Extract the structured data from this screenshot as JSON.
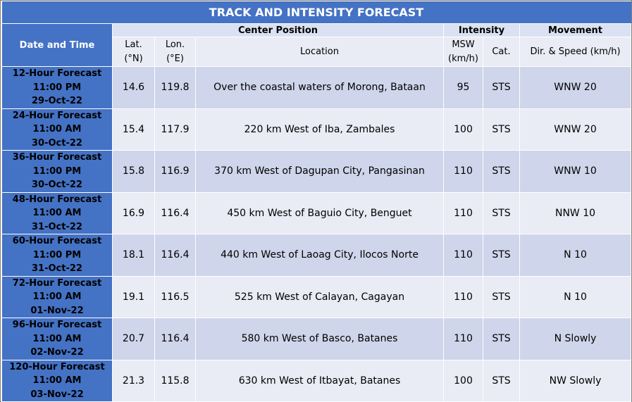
{
  "title": "TRACK AND INTENSITY FORECAST",
  "headers": {
    "date_time": "Date and Time",
    "center_position": "Center Position",
    "intensity": "Intensity",
    "movement": "Movement",
    "lat": [
      "Lat.",
      "(°N)"
    ],
    "lon": [
      "Lon.",
      "(°E)"
    ],
    "location": "Location",
    "msw": [
      "MSW",
      "(km/h)"
    ],
    "cat": "Cat.",
    "dir_speed": "Dir. & Speed (km/h)"
  },
  "rows": [
    {
      "forecast": "12-Hour Forecast",
      "time": "11:00 PM",
      "date": "29-Oct-22",
      "lat": "14.6",
      "lon": "119.8",
      "location": "Over the coastal waters of Morong, Bataan",
      "msw": "95",
      "cat": "STS",
      "movement": "WNW 20"
    },
    {
      "forecast": "24-Hour Forecast",
      "time": "11:00 AM",
      "date": "30-Oct-22",
      "lat": "15.4",
      "lon": "117.9",
      "location": "220 km West of Iba, Zambales",
      "msw": "100",
      "cat": "STS",
      "movement": "WNW 20"
    },
    {
      "forecast": "36-Hour Forecast",
      "time": "11:00 PM",
      "date": "30-Oct-22",
      "lat": "15.8",
      "lon": "116.9",
      "location": "370 km West of Dagupan City, Pangasinan",
      "msw": "110",
      "cat": "STS",
      "movement": "WNW 10"
    },
    {
      "forecast": "48-Hour Forecast",
      "time": "11:00 AM",
      "date": "31-Oct-22",
      "lat": "16.9",
      "lon": "116.4",
      "location": "450 km West of Baguio City, Benguet",
      "msw": "110",
      "cat": "STS",
      "movement": "NNW 10"
    },
    {
      "forecast": "60-Hour Forecast",
      "time": "11:00 PM",
      "date": "31-Oct-22",
      "lat": "18.1",
      "lon": "116.4",
      "location": "440 km West of Laoag City, Ilocos Norte",
      "msw": "110",
      "cat": "STS",
      "movement": "N 10"
    },
    {
      "forecast": "72-Hour Forecast",
      "time": "11:00 AM",
      "date": "01-Nov-22",
      "lat": "19.1",
      "lon": "116.5",
      "location": "525 km West of Calayan, Cagayan",
      "msw": "110",
      "cat": "STS",
      "movement": "N 10"
    },
    {
      "forecast": "96-Hour Forecast",
      "time": "11:00 AM",
      "date": "02-Nov-22",
      "lat": "20.7",
      "lon": "116.4",
      "location": "580 km West of Basco, Batanes",
      "msw": "110",
      "cat": "STS",
      "movement": "N Slowly"
    },
    {
      "forecast": "120-Hour Forecast",
      "time": "11:00 AM",
      "date": "03-Nov-22",
      "lat": "21.3",
      "lon": "115.8",
      "location": "630 km West of Itbayat, Batanes",
      "msw": "100",
      "cat": "STS",
      "movement": "NW Slowly"
    }
  ],
  "colors": {
    "header_blue": "#4472c4",
    "band_dark": "#cfd5ea",
    "band_light": "#e9ebf5",
    "subheader": "#d9e1f2"
  }
}
